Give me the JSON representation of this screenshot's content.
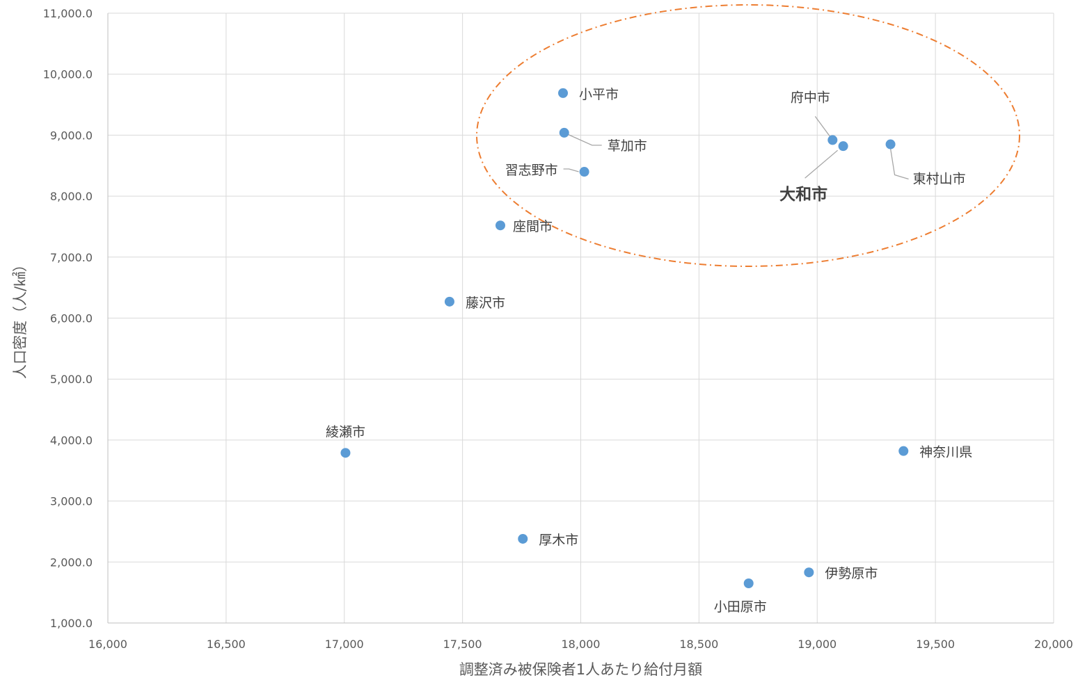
{
  "chart_data": {
    "type": "scatter",
    "title": "",
    "xlabel": "調整済み被保険者1人あたり給付月額",
    "ylabel": "人口密度（人/㎢）",
    "xlim": [
      16000,
      20000
    ],
    "ylim": [
      1000,
      11000
    ],
    "x_ticks": [
      "16,000",
      "16,500",
      "17,000",
      "17,500",
      "18,000",
      "18,500",
      "19,000",
      "19,500",
      "20,000"
    ],
    "y_ticks": [
      "1,000.0",
      "2,000.0",
      "3,000.0",
      "4,000.0",
      "5,000.0",
      "6,000.0",
      "7,000.0",
      "8,000.0",
      "9,000.0",
      "10,000.0",
      "11,000.0"
    ],
    "grid": true,
    "marker_color": "#5b9bd5",
    "highlight_color": "#ed7d31",
    "points": [
      {
        "label": "小平市",
        "x": 17925,
        "y": 9690
      },
      {
        "label": "草加市",
        "x": 17930,
        "y": 9040
      },
      {
        "label": "習志野市",
        "x": 18015,
        "y": 8400
      },
      {
        "label": "座間市",
        "x": 17660,
        "y": 7520
      },
      {
        "label": "藤沢市",
        "x": 17445,
        "y": 6270
      },
      {
        "label": "綾瀬市",
        "x": 17005,
        "y": 3790
      },
      {
        "label": "厚木市",
        "x": 17755,
        "y": 2380
      },
      {
        "label": "府中市",
        "x": 19065,
        "y": 8920
      },
      {
        "label": "大和市",
        "x": 19110,
        "y": 8820,
        "emphasis": true
      },
      {
        "label": "東村山市",
        "x": 19310,
        "y": 8850
      },
      {
        "label": "神奈川県",
        "x": 19365,
        "y": 3820
      },
      {
        "label": "伊勢原市",
        "x": 18965,
        "y": 1830
      },
      {
        "label": "小田原市",
        "x": 18710,
        "y": 1650
      }
    ],
    "annotation": {
      "shape": "dash-dot ellipse",
      "encloses": [
        "小平市",
        "草加市",
        "習志野市",
        "座間市",
        "府中市",
        "大和市",
        "東村山市"
      ]
    }
  }
}
